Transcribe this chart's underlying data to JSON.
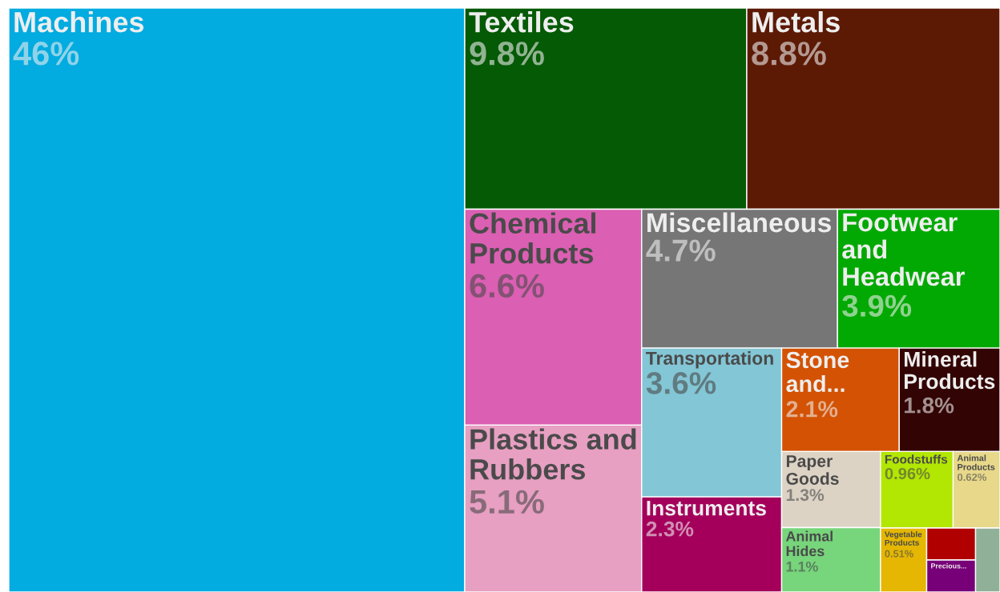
{
  "chart_data": {
    "type": "other",
    "categories": [
      "Machines",
      "Textiles",
      "Metals",
      "Chemical Products",
      "Plastics and Rubbers",
      "Miscellaneous",
      "Footwear and Headwear",
      "Transportation",
      "Instruments",
      "Stone and...",
      "Mineral Products",
      "Paper Goods",
      "Animal Hides",
      "Foodstuffs",
      "Animal Products",
      "Vegetable Products",
      null,
      "Precious...",
      null
    ],
    "values": [
      46,
      9.8,
      8.8,
      6.6,
      5.1,
      4.7,
      3.9,
      3.6,
      2.3,
      2.1,
      1.8,
      1.3,
      1.1,
      0.96,
      0.62,
      0.51,
      null,
      null,
      null
    ],
    "value_labels": [
      "46%",
      "9.8%",
      "8.8%",
      "6.6%",
      "5.1%",
      "4.7%",
      "3.9%",
      "3.6%",
      "2.3%",
      "2.1%",
      "1.8%",
      "1.3%",
      "1.1%",
      "0.96%",
      "0.62%",
      "0.51%",
      null,
      null,
      null
    ],
    "colors": [
      "#02abe0",
      "#055a05",
      "#5c1a05",
      "#db5fb2",
      "#e79fc2",
      "#767676",
      "#02a902",
      "#83c6d5",
      "#a4005b",
      "#d35203",
      "#330404",
      "#dcd3c5",
      "#77d57b",
      "#b2e603",
      "#e7d88a",
      "#e5b702",
      "#b00000",
      "#770078",
      "#90b097"
    ]
  }
}
